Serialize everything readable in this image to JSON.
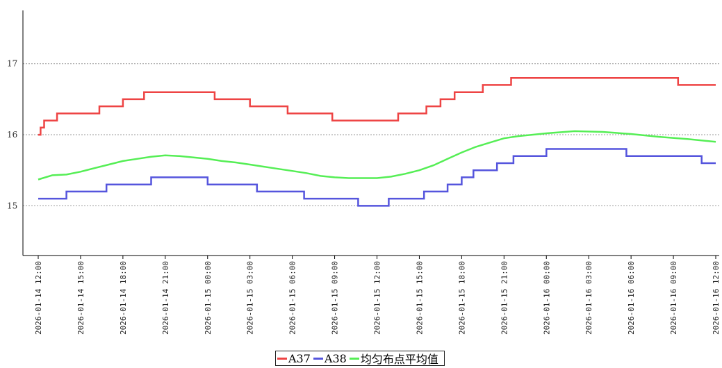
{
  "chart_data": {
    "type": "line",
    "title": "",
    "xlabel": "",
    "ylabel": "",
    "x_range": [
      "2026-01-14 12:00",
      "2026-01-16 12:00"
    ],
    "ylim": [
      14.3,
      17.75
    ],
    "y_ticks": [
      "15",
      "16",
      "17"
    ],
    "x_ticks": [
      "2026-01-14 12:00",
      "2026-01-14 15:00",
      "2026-01-14 18:00",
      "2026-01-14 21:00",
      "2026-01-15 00:00",
      "2026-01-15 03:00",
      "2026-01-15 06:00",
      "2026-01-15 09:00",
      "2026-01-15 12:00",
      "2026-01-15 15:00",
      "2026-01-15 18:00",
      "2026-01-15 21:00",
      "2026-01-16 00:00",
      "2026-01-16 03:00",
      "2026-01-16 06:00",
      "2026-01-16 09:00",
      "2026-01-16 12:00"
    ],
    "grid": "horizontal dotted",
    "legend_position": "bottom-center",
    "series": [
      {
        "name": "A37",
        "color": "#ee4444",
        "points": [
          [
            "2026-01-14 12:00",
            16.0
          ],
          [
            "2026-01-14 12:10",
            16.1
          ],
          [
            "2026-01-14 12:25",
            16.2
          ],
          [
            "2026-01-14 13:20",
            16.3
          ],
          [
            "2026-01-14 16:20",
            16.4
          ],
          [
            "2026-01-14 18:00",
            16.5
          ],
          [
            "2026-01-14 19:30",
            16.6
          ],
          [
            "2026-01-15 00:30",
            16.5
          ],
          [
            "2026-01-15 03:00",
            16.4
          ],
          [
            "2026-01-15 05:40",
            16.3
          ],
          [
            "2026-01-15 08:50",
            16.2
          ],
          [
            "2026-01-15 13:30",
            16.3
          ],
          [
            "2026-01-15 15:30",
            16.4
          ],
          [
            "2026-01-15 16:30",
            16.5
          ],
          [
            "2026-01-15 17:30",
            16.6
          ],
          [
            "2026-01-15 19:30",
            16.7
          ],
          [
            "2026-01-15 21:30",
            16.8
          ],
          [
            "2026-01-16 09:20",
            16.7
          ],
          [
            "2026-01-16 12:00",
            16.7
          ]
        ]
      },
      {
        "name": "A38",
        "color": "#5555dd",
        "points": [
          [
            "2026-01-14 12:00",
            15.1
          ],
          [
            "2026-01-14 14:00",
            15.2
          ],
          [
            "2026-01-14 16:50",
            15.3
          ],
          [
            "2026-01-14 20:00",
            15.4
          ],
          [
            "2026-01-15 00:00",
            15.3
          ],
          [
            "2026-01-15 03:30",
            15.2
          ],
          [
            "2026-01-15 06:50",
            15.1
          ],
          [
            "2026-01-15 10:40",
            15.0
          ],
          [
            "2026-01-15 12:50",
            15.1
          ],
          [
            "2026-01-15 15:20",
            15.2
          ],
          [
            "2026-01-15 17:00",
            15.3
          ],
          [
            "2026-01-15 18:00",
            15.4
          ],
          [
            "2026-01-15 18:50",
            15.5
          ],
          [
            "2026-01-15 20:30",
            15.6
          ],
          [
            "2026-01-15 21:40",
            15.7
          ],
          [
            "2026-01-16 00:00",
            15.8
          ],
          [
            "2026-01-16 05:40",
            15.7
          ],
          [
            "2026-01-16 11:00",
            15.6
          ],
          [
            "2026-01-16 12:00",
            15.6
          ]
        ]
      },
      {
        "name": "均匀布点平均值",
        "color": "#55ee55",
        "points": [
          [
            "2026-01-14 12:00",
            15.37
          ],
          [
            "2026-01-14 13:00",
            15.43
          ],
          [
            "2026-01-14 14:00",
            15.44
          ],
          [
            "2026-01-14 15:00",
            15.48
          ],
          [
            "2026-01-14 16:00",
            15.53
          ],
          [
            "2026-01-14 17:00",
            15.58
          ],
          [
            "2026-01-14 18:00",
            15.63
          ],
          [
            "2026-01-14 19:00",
            15.66
          ],
          [
            "2026-01-14 20:00",
            15.69
          ],
          [
            "2026-01-14 21:00",
            15.71
          ],
          [
            "2026-01-14 22:00",
            15.7
          ],
          [
            "2026-01-14 23:00",
            15.68
          ],
          [
            "2026-01-15 00:00",
            15.66
          ],
          [
            "2026-01-15 01:00",
            15.63
          ],
          [
            "2026-01-15 02:00",
            15.61
          ],
          [
            "2026-01-15 03:00",
            15.58
          ],
          [
            "2026-01-15 04:00",
            15.55
          ],
          [
            "2026-01-15 05:00",
            15.52
          ],
          [
            "2026-01-15 06:00",
            15.49
          ],
          [
            "2026-01-15 07:00",
            15.46
          ],
          [
            "2026-01-15 08:00",
            15.42
          ],
          [
            "2026-01-15 09:00",
            15.4
          ],
          [
            "2026-01-15 10:00",
            15.39
          ],
          [
            "2026-01-15 11:00",
            15.39
          ],
          [
            "2026-01-15 12:00",
            15.39
          ],
          [
            "2026-01-15 13:00",
            15.41
          ],
          [
            "2026-01-15 14:00",
            15.45
          ],
          [
            "2026-01-15 15:00",
            15.5
          ],
          [
            "2026-01-15 16:00",
            15.57
          ],
          [
            "2026-01-15 17:00",
            15.66
          ],
          [
            "2026-01-15 18:00",
            15.75
          ],
          [
            "2026-01-15 19:00",
            15.83
          ],
          [
            "2026-01-15 20:00",
            15.89
          ],
          [
            "2026-01-15 21:00",
            15.95
          ],
          [
            "2026-01-15 22:00",
            15.98
          ],
          [
            "2026-01-16 00:00",
            16.02
          ],
          [
            "2026-01-16 02:00",
            16.05
          ],
          [
            "2026-01-16 04:00",
            16.04
          ],
          [
            "2026-01-16 06:00",
            16.01
          ],
          [
            "2026-01-16 08:00",
            15.97
          ],
          [
            "2026-01-16 10:00",
            15.94
          ],
          [
            "2026-01-16 12:00",
            15.9
          ]
        ]
      }
    ]
  }
}
